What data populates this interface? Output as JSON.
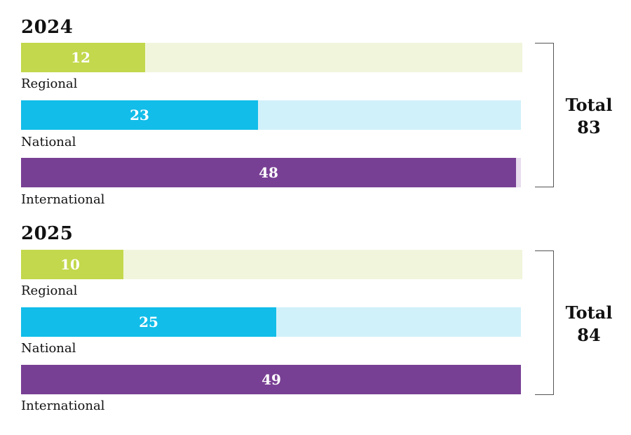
{
  "chart_data": [
    {
      "type": "bar",
      "orientation": "horizontal",
      "title": "2024",
      "categories": [
        "Regional",
        "National",
        "International"
      ],
      "values": [
        12,
        23,
        48
      ],
      "xlim": [
        0,
        48.5
      ],
      "total_label": "Total",
      "total_value": "83"
    },
    {
      "type": "bar",
      "orientation": "horizontal",
      "title": "2025",
      "categories": [
        "Regional",
        "National",
        "International"
      ],
      "values": [
        10,
        25,
        49
      ],
      "xlim": [
        0,
        49
      ],
      "total_label": "Total",
      "total_value": "84"
    }
  ],
  "colors": {
    "regional": "#c3d84c",
    "regional_track": "#f1f5dc",
    "national": "#12bde9",
    "national_track": "#d1f1fa",
    "international": "#784094",
    "international_track": "#e7dcee"
  }
}
